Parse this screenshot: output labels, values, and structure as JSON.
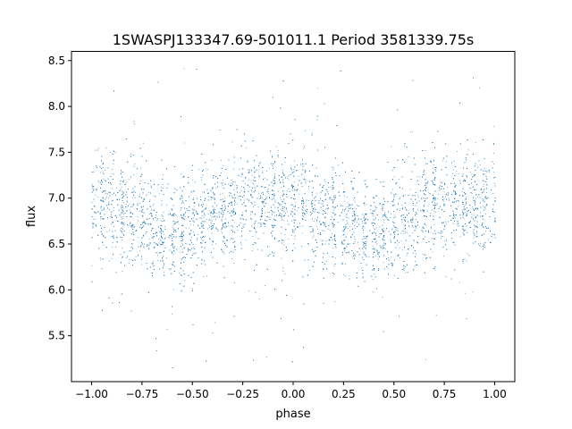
{
  "chart_data": {
    "type": "scatter",
    "title": "1SWASPJ133347.69-501011.1 Period 3581339.75s",
    "xlabel": "phase",
    "ylabel": "flux",
    "xlim": [
      -1.1,
      1.1
    ],
    "ylim": [
      5.0,
      8.6
    ],
    "x_ticks": [
      -1.0,
      -0.75,
      -0.5,
      -0.25,
      0.0,
      0.25,
      0.5,
      0.75,
      1.0
    ],
    "x_tick_labels": [
      "−1.00",
      "−0.75",
      "−0.50",
      "−0.25",
      "0.00",
      "0.25",
      "0.50",
      "0.75",
      "1.00"
    ],
    "y_ticks": [
      5.5,
      6.0,
      6.5,
      7.0,
      7.5,
      8.0,
      8.5
    ],
    "y_tick_labels": [
      "5.5",
      "6.0",
      "6.5",
      "7.0",
      "7.5",
      "8.0",
      "8.5"
    ],
    "grid": false,
    "marker_color": "#1f77b4",
    "series": [
      {
        "phase_mean_flux": [
          {
            "phase": -1.0,
            "flux": 6.95
          },
          {
            "phase": -0.9,
            "flux": 6.85
          },
          {
            "phase": -0.75,
            "flux": 6.75
          },
          {
            "phase": -0.6,
            "flux": 6.6
          },
          {
            "phase": -0.5,
            "flux": 6.7
          },
          {
            "phase": -0.4,
            "flux": 6.82
          },
          {
            "phase": -0.25,
            "flux": 6.95
          },
          {
            "phase": -0.1,
            "flux": 6.9
          },
          {
            "phase": 0.0,
            "flux": 6.95
          },
          {
            "phase": 0.1,
            "flux": 6.85
          },
          {
            "phase": 0.25,
            "flux": 6.75
          },
          {
            "phase": 0.4,
            "flux": 6.6
          },
          {
            "phase": 0.5,
            "flux": 6.7
          },
          {
            "phase": 0.6,
            "flux": 6.82
          },
          {
            "phase": 0.75,
            "flux": 6.95
          },
          {
            "phase": 0.9,
            "flux": 6.9
          },
          {
            "phase": 1.0,
            "flux": 6.95
          }
        ],
        "scatter_sd": 0.28,
        "n_points": 9000
      }
    ]
  }
}
